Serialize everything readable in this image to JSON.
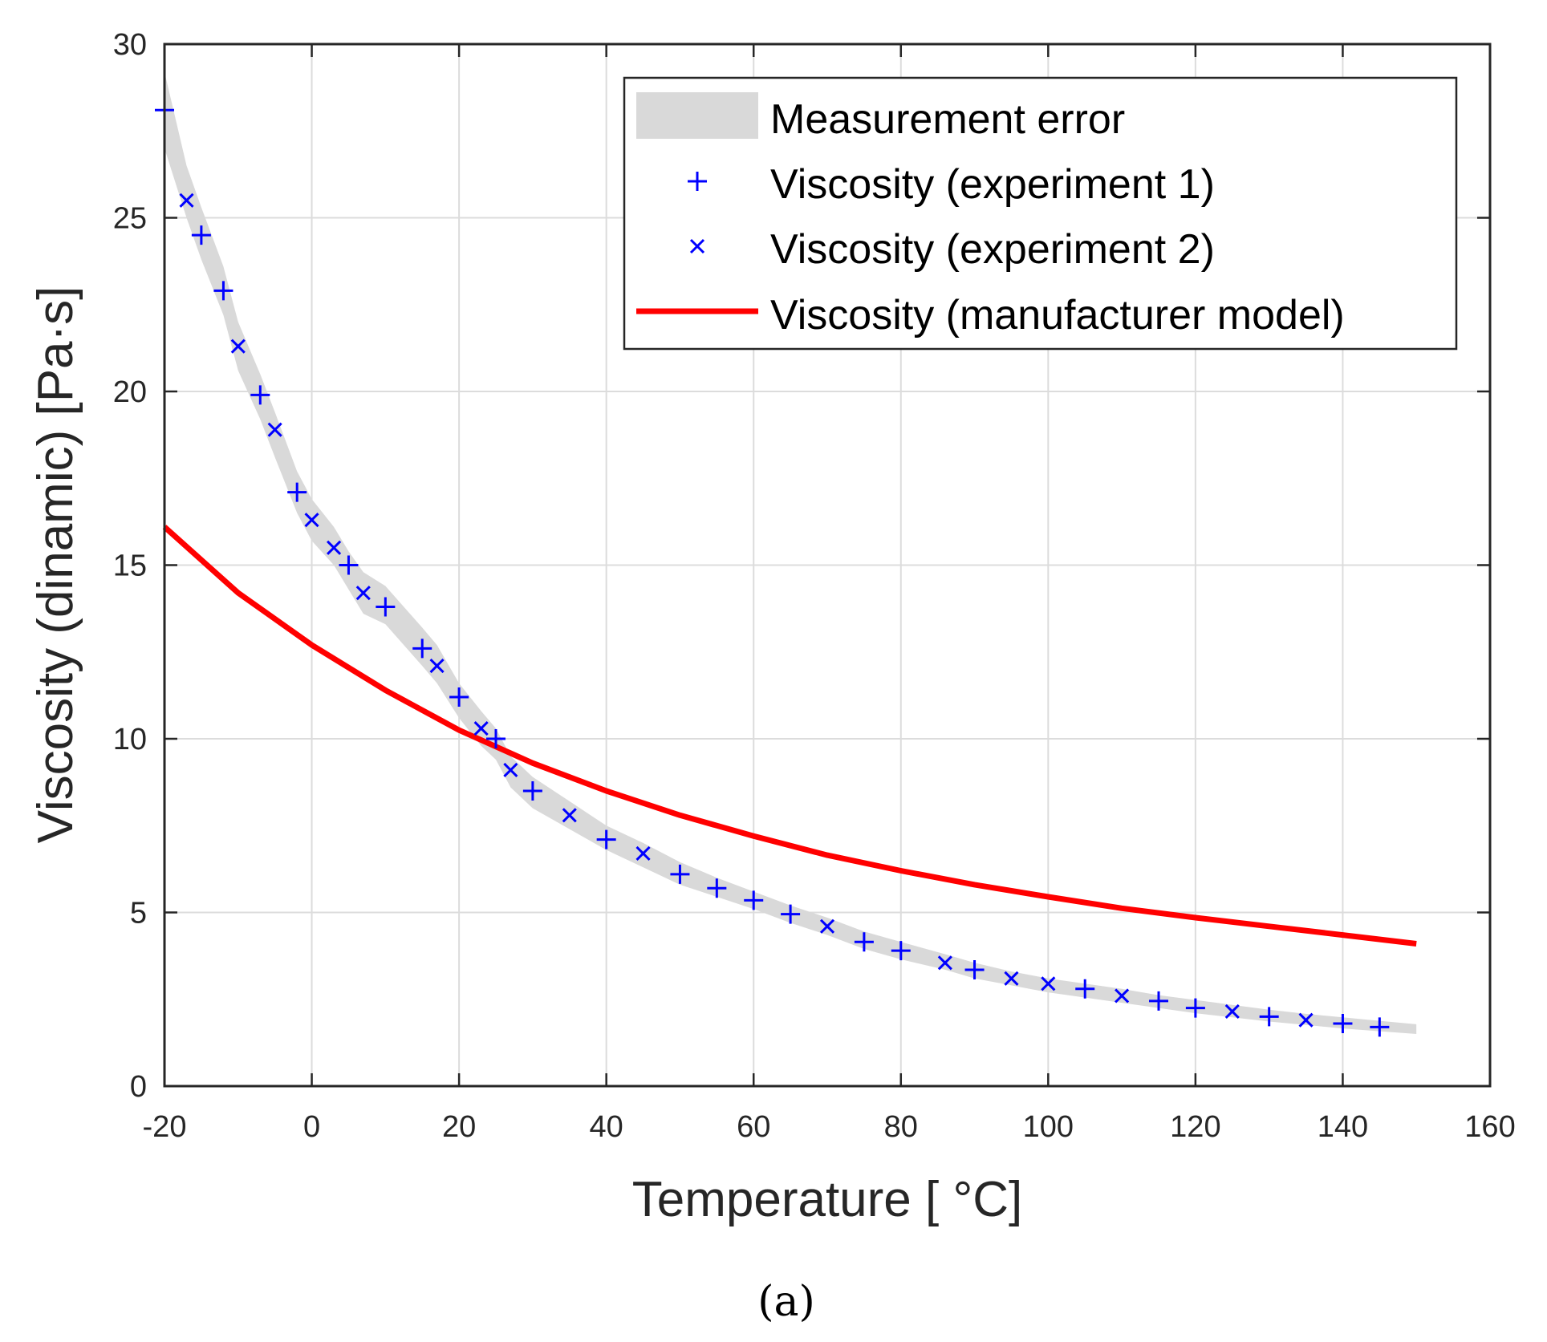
{
  "chart_data": {
    "type": "line",
    "xlabel": "Temperature [ °C]",
    "ylabel": "Viscosity (dinamic) [Pa·s]",
    "xlim": [
      -20,
      160
    ],
    "ylim": [
      0,
      30
    ],
    "xticks": [
      -20,
      0,
      20,
      40,
      60,
      80,
      100,
      120,
      140,
      160
    ],
    "yticks": [
      0,
      5,
      10,
      15,
      20,
      25,
      30
    ],
    "grid": true,
    "legend_position": "top-right",
    "caption": "(a)",
    "colors": {
      "markers": "#0000ff",
      "model": "#ff0000",
      "error_band": "#d9d9d9"
    },
    "series": [
      {
        "name": "Measurement error",
        "style": "band",
        "x": [
          -20,
          -17,
          -15,
          -12,
          -10,
          -7,
          -5,
          -2,
          0,
          3,
          5,
          7,
          10,
          15,
          17,
          20,
          23,
          25,
          27,
          30,
          35,
          40,
          45,
          50,
          55,
          60,
          65,
          70,
          75,
          80,
          86,
          90,
          95,
          100,
          105,
          110,
          115,
          120,
          125,
          130,
          135,
          140,
          145,
          150
        ],
        "lower": [
          27.0,
          25.0,
          23.8,
          22.2,
          20.6,
          19.2,
          18.1,
          16.5,
          15.7,
          15.0,
          14.3,
          13.6,
          13.3,
          12.1,
          11.6,
          10.6,
          9.8,
          9.4,
          8.6,
          8.0,
          7.4,
          6.8,
          6.3,
          5.8,
          5.45,
          5.1,
          4.7,
          4.35,
          3.95,
          3.65,
          3.35,
          3.1,
          2.9,
          2.7,
          2.55,
          2.4,
          2.25,
          2.1,
          1.98,
          1.86,
          1.76,
          1.66,
          1.58,
          1.5
        ],
        "upper": [
          29.2,
          26.5,
          25.3,
          23.6,
          22.0,
          20.5,
          19.4,
          17.7,
          16.9,
          16.1,
          15.4,
          14.8,
          14.4,
          13.2,
          12.7,
          11.6,
          10.8,
          10.3,
          9.5,
          8.9,
          8.2,
          7.5,
          7.0,
          6.45,
          6.0,
          5.6,
          5.2,
          4.85,
          4.45,
          4.15,
          3.8,
          3.55,
          3.3,
          3.1,
          2.95,
          2.8,
          2.62,
          2.48,
          2.34,
          2.2,
          2.08,
          1.98,
          1.88,
          1.78
        ]
      },
      {
        "name": "Viscosity (experiment 1)",
        "style": "plus",
        "x": [
          -20,
          -15,
          -12,
          -7,
          -2,
          5,
          10,
          15,
          20,
          25,
          30,
          40,
          50,
          55,
          60,
          65,
          75,
          80,
          90,
          105,
          115,
          120,
          130,
          140,
          145
        ],
        "y": [
          28.1,
          24.5,
          22.9,
          19.9,
          17.1,
          15.0,
          13.8,
          12.6,
          11.2,
          10.0,
          8.5,
          7.1,
          6.1,
          5.7,
          5.35,
          4.95,
          4.15,
          3.9,
          3.35,
          2.8,
          2.45,
          2.25,
          2.0,
          1.8,
          1.7
        ]
      },
      {
        "name": "Viscosity (experiment 2)",
        "style": "cross",
        "x": [
          -17,
          -10,
          -5,
          0,
          3,
          7,
          17,
          23,
          27,
          35,
          45,
          70,
          86,
          95,
          100,
          110,
          125,
          135
        ],
        "y": [
          25.5,
          21.3,
          18.9,
          16.3,
          15.5,
          14.2,
          12.1,
          10.3,
          9.1,
          7.8,
          6.7,
          4.6,
          3.55,
          3.1,
          2.95,
          2.6,
          2.15,
          1.9
        ]
      },
      {
        "name": "Viscosity (manufacturer model)",
        "style": "line",
        "x": [
          -20,
          -10,
          0,
          10,
          20,
          30,
          40,
          50,
          60,
          70,
          80,
          90,
          100,
          110,
          120,
          130,
          140,
          150
        ],
        "y": [
          16.1,
          14.2,
          12.7,
          11.4,
          10.25,
          9.3,
          8.5,
          7.8,
          7.2,
          6.65,
          6.2,
          5.8,
          5.45,
          5.12,
          4.85,
          4.6,
          4.35,
          4.1
        ]
      }
    ]
  }
}
